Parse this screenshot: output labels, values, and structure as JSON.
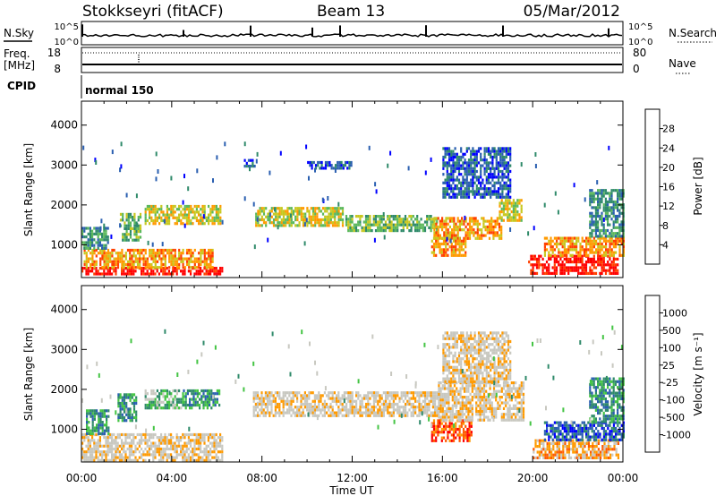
{
  "header": {
    "station": "Stokkseyri (fitACF)",
    "beam": "Beam 13",
    "date": "05/Mar/2012"
  },
  "summary_panels": {
    "nsky": {
      "label": "N.Sky",
      "ticks_left": [
        "10^5",
        "10^0"
      ],
      "ticks_right": [
        "10^5",
        "10^0"
      ],
      "right_label": "N.Search"
    },
    "freq": {
      "label_line1": "Freq.",
      "label_line2": "[MHz]",
      "ticks_left": [
        "18",
        "8"
      ],
      "ticks_right": [
        "80",
        "0"
      ],
      "right_label": "Nave"
    },
    "cpid": {
      "label": "CPID",
      "mode": "normal 150"
    }
  },
  "chart_data": [
    {
      "type": "heatmap",
      "name": "power",
      "ylabel": "Slant Range [km]",
      "xlabel": "Time UT",
      "x_ticks": [
        "00:00",
        "04:00",
        "08:00",
        "12:00",
        "16:00",
        "20:00",
        "00:00"
      ],
      "y_ticks": [
        1000,
        2000,
        3000,
        4000
      ],
      "xlim_hours": [
        0,
        24
      ],
      "ylim_km": [
        180,
        4600
      ],
      "colorbar": {
        "label": "Power [dB]",
        "ticks": [
          "28",
          "24",
          "20",
          "16",
          "12",
          "8",
          "4"
        ],
        "colors": [
          "#0000ff",
          "#2a5fb0",
          "#2f8a6a",
          "#5cb85c",
          "#c8c820",
          "#ff9a00",
          "#ff4000",
          "#ff0000"
        ]
      },
      "regions": [
        {
          "t0": 0.0,
          "t1": 6.3,
          "r0": 250,
          "r1": 450,
          "level": 7
        },
        {
          "t0": 0.1,
          "t1": 5.8,
          "r0": 450,
          "r1": 900,
          "level": 5
        },
        {
          "t0": 0.0,
          "t1": 1.2,
          "r0": 900,
          "r1": 1450,
          "level": 2
        },
        {
          "t0": 1.7,
          "t1": 2.6,
          "r0": 1100,
          "r1": 1800,
          "level": 3
        },
        {
          "t0": 2.8,
          "t1": 6.2,
          "r0": 1500,
          "r1": 2000,
          "level": 4
        },
        {
          "t0": 7.7,
          "t1": 11.6,
          "r0": 1500,
          "r1": 1950,
          "level": 4
        },
        {
          "t0": 11.7,
          "t1": 15.8,
          "r0": 1350,
          "r1": 1750,
          "level": 3
        },
        {
          "t0": 15.6,
          "t1": 18.6,
          "r0": 1150,
          "r1": 1700,
          "level": 5
        },
        {
          "t0": 15.5,
          "t1": 17.0,
          "r0": 700,
          "r1": 1200,
          "level": 5
        },
        {
          "t0": 18.5,
          "t1": 19.5,
          "r0": 1600,
          "r1": 2150,
          "level": 4
        },
        {
          "t0": 16.0,
          "t1": 19.0,
          "r0": 2200,
          "r1": 3450,
          "level": 1
        },
        {
          "t0": 10.0,
          "t1": 12.0,
          "r0": 2900,
          "r1": 3100,
          "level": 1
        },
        {
          "t0": 7.2,
          "t1": 7.7,
          "r0": 2950,
          "r1": 3150,
          "level": 1
        },
        {
          "t0": 19.8,
          "t1": 23.8,
          "r0": 250,
          "r1": 750,
          "level": 7
        },
        {
          "t0": 20.5,
          "t1": 24.0,
          "r0": 750,
          "r1": 1200,
          "level": 5
        },
        {
          "t0": 22.5,
          "t1": 24.0,
          "r0": 1200,
          "r1": 2400,
          "level": 2
        }
      ]
    },
    {
      "type": "heatmap",
      "name": "velocity",
      "ylabel": "Slant Range [km]",
      "xlabel": "Time UT",
      "x_ticks": [
        "00:00",
        "04:00",
        "08:00",
        "12:00",
        "16:00",
        "20:00",
        "00:00"
      ],
      "y_ticks": [
        1000,
        2000,
        3000,
        4000
      ],
      "xlim_hours": [
        0,
        24
      ],
      "ylim_km": [
        180,
        4600
      ],
      "colorbar": {
        "label": "Velocity [m s⁻¹]",
        "ticks": [
          "1000",
          "500",
          "100",
          "25",
          "-25",
          "-100",
          "-500",
          "-1000"
        ],
        "colors": [
          "#ff0000",
          "#ff5a00",
          "#ff9a00",
          "#c8c8c0",
          "#c8c8c0",
          "#44c444",
          "#2f8a6a",
          "#2a5fb0",
          "#0000ff"
        ]
      },
      "regions": [
        {
          "t0": 0.0,
          "t1": 6.2,
          "r0": 250,
          "r1": 900,
          "level": 3
        },
        {
          "t0": 0.2,
          "t1": 1.2,
          "r0": 900,
          "r1": 1500,
          "level": 6
        },
        {
          "t0": 1.6,
          "t1": 2.4,
          "r0": 1200,
          "r1": 1900,
          "level": 6
        },
        {
          "t0": 2.8,
          "t1": 4.5,
          "r0": 1500,
          "r1": 2000,
          "level": 5
        },
        {
          "t0": 4.5,
          "t1": 6.1,
          "r0": 1500,
          "r1": 2000,
          "level": 6
        },
        {
          "t0": 7.6,
          "t1": 15.8,
          "r0": 1350,
          "r1": 1950,
          "level": 3
        },
        {
          "t0": 15.5,
          "t1": 17.3,
          "r0": 700,
          "r1": 1250,
          "level": 1
        },
        {
          "t0": 15.8,
          "t1": 19.6,
          "r0": 1200,
          "r1": 2200,
          "level": 3
        },
        {
          "t0": 16.0,
          "t1": 19.0,
          "r0": 2200,
          "r1": 3450,
          "level": 3
        },
        {
          "t0": 20.0,
          "t1": 23.8,
          "r0": 250,
          "r1": 750,
          "level": 2
        },
        {
          "t0": 20.5,
          "t1": 24.0,
          "r0": 750,
          "r1": 1200,
          "level": 7
        },
        {
          "t0": 22.5,
          "t1": 24.0,
          "r0": 1200,
          "r1": 2300,
          "level": 6
        }
      ]
    }
  ]
}
